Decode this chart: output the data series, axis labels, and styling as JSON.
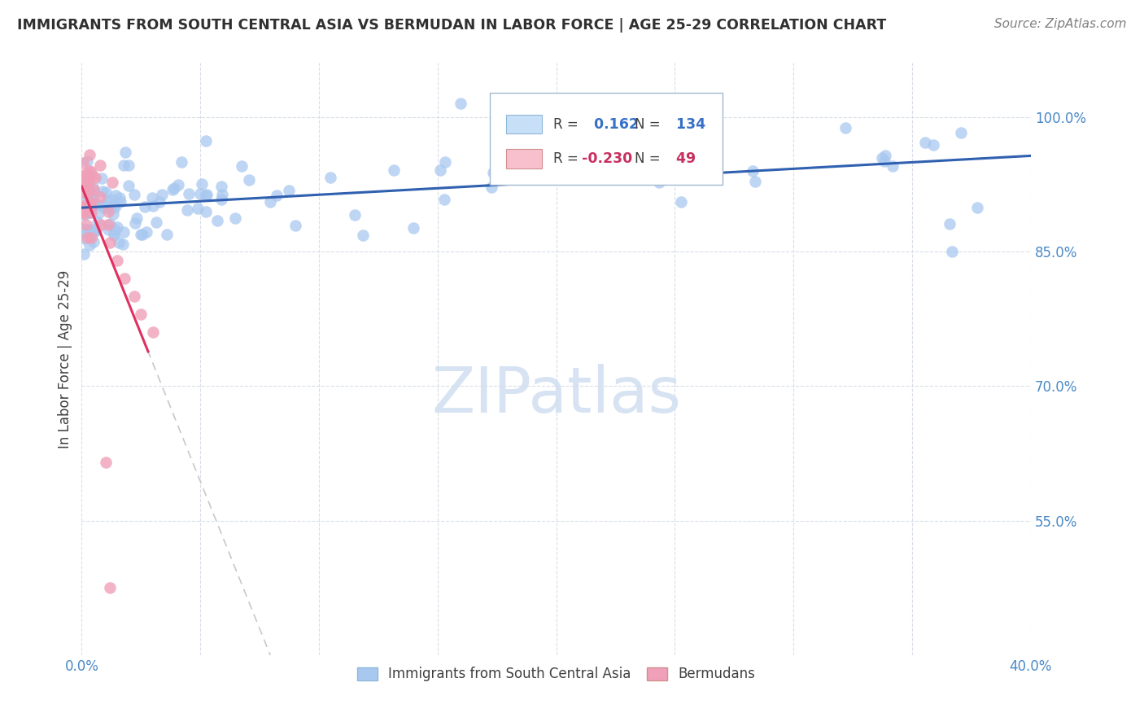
{
  "title": "IMMIGRANTS FROM SOUTH CENTRAL ASIA VS BERMUDAN IN LABOR FORCE | AGE 25-29 CORRELATION CHART",
  "source": "Source: ZipAtlas.com",
  "ylabel": "In Labor Force | Age 25-29",
  "xlim": [
    0.0,
    0.4
  ],
  "ylim": [
    0.4,
    1.06
  ],
  "x_tick_pos": [
    0.0,
    0.05,
    0.1,
    0.15,
    0.2,
    0.25,
    0.3,
    0.35,
    0.4
  ],
  "x_tick_labels": [
    "0.0%",
    "",
    "",
    "",
    "",
    "",
    "",
    "",
    "40.0%"
  ],
  "y_tick_pos": [
    0.55,
    0.7,
    0.85,
    1.0
  ],
  "y_tick_labels": [
    "55.0%",
    "70.0%",
    "85.0%",
    "100.0%"
  ],
  "blue_R": 0.162,
  "blue_N": 134,
  "pink_R": -0.23,
  "pink_N": 49,
  "blue_scatter_color": "#a8c8f0",
  "pink_scatter_color": "#f0a0b8",
  "blue_line_color": "#3060b0",
  "pink_line_color": "#e03060",
  "pink_dash_color": "#c8c8c8",
  "grid_color": "#d8dde8",
  "watermark_color": "#d0dff0",
  "legend_box_blue_fill": "#c8dff8",
  "legend_box_blue_edge": "#90b8d8",
  "legend_box_pink_fill": "#f8c0cc",
  "legend_box_pink_edge": "#d09090",
  "legend_R_blue": "#3870c8",
  "legend_R_pink": "#c83060",
  "title_color": "#303030",
  "source_color": "#808080",
  "ylabel_color": "#404040",
  "tick_color": "#4888c8"
}
